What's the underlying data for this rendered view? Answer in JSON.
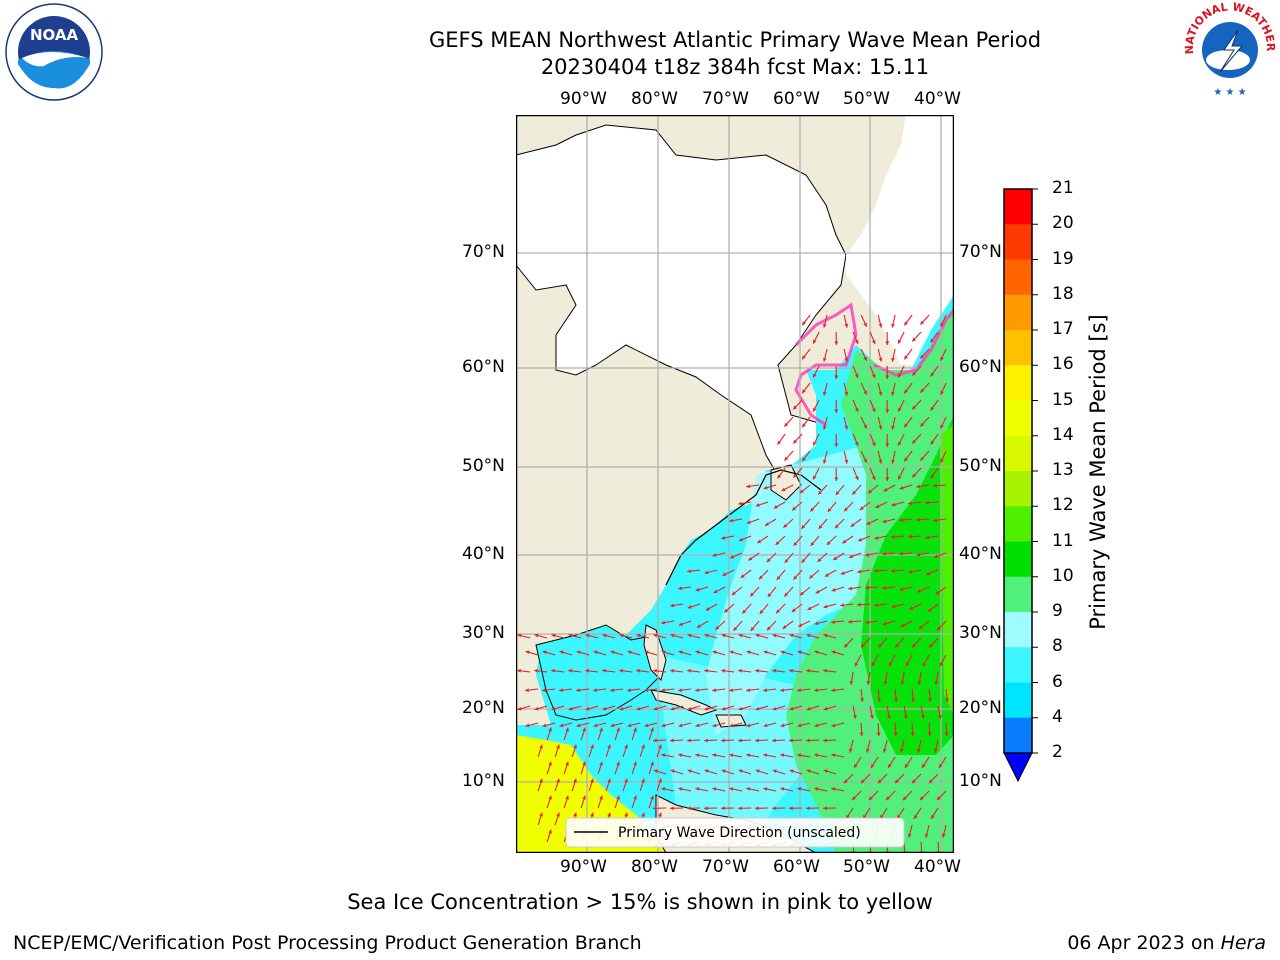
{
  "title": {
    "line1": "GEFS MEAN Northwest Atlantic Primary Wave Mean Period",
    "line2": "20230404 t18z 384h fcst   Max: 15.11"
  },
  "logos": {
    "left": {
      "name": "noaa-logo",
      "text": "NOAA"
    },
    "right": {
      "name": "nws-logo",
      "text": "NATIONAL WEATHER SERVICE"
    }
  },
  "map": {
    "lon_labels": [
      "90°W",
      "80°W",
      "70°W",
      "60°W",
      "50°W",
      "40°W"
    ],
    "lat_labels": [
      "70°N",
      "60°N",
      "50°N",
      "40°N",
      "30°N",
      "20°N",
      "10°N"
    ],
    "legend_label": "Primary Wave Direction (unscaled)",
    "colors": {
      "land": "#efecd9",
      "ice_free_land": "#ffffff",
      "grid": "#b0b0b0",
      "arrow": "#e8202a",
      "ice": "#ff40c0"
    }
  },
  "colorbar": {
    "label": "Primary Wave Mean Period [s]",
    "ticks": [
      "2",
      "4",
      "6",
      "8",
      "9",
      "10",
      "11",
      "12",
      "13",
      "14",
      "15",
      "16",
      "17",
      "18",
      "19",
      "20",
      "21"
    ],
    "colors": [
      "#0000ff",
      "#0a7cff",
      "#00e5ff",
      "#3cf6ff",
      "#a0fbff",
      "#50f07a",
      "#00e000",
      "#4ef000",
      "#a6f200",
      "#d8f800",
      "#f0ff00",
      "#fff000",
      "#ffc000",
      "#ff9a00",
      "#ff6400",
      "#ff3a00",
      "#ff0000"
    ]
  },
  "caption": "Sea Ice Concentration > 15% is shown in pink to yellow",
  "footer": {
    "left": "NCEP/EMC/Verification Post Processing Product Generation Branch",
    "right_date": "06 Apr 2023 on ",
    "right_host": "Hera"
  }
}
